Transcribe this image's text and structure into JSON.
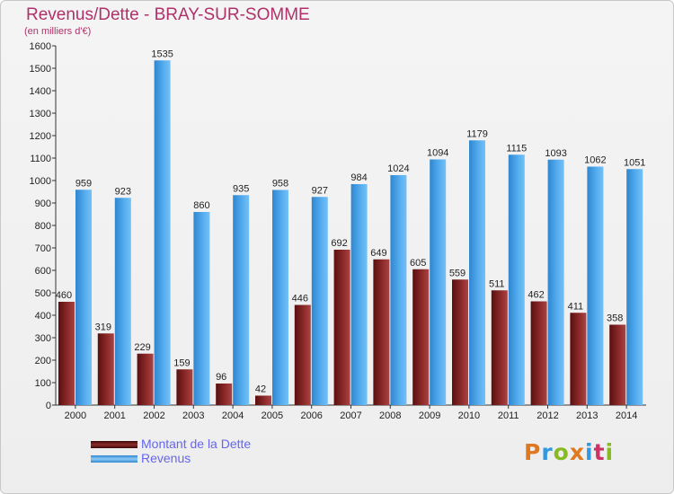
{
  "chart_data": {
    "type": "bar",
    "title": "Revenus/Dette - BRAY-SUR-SOMME",
    "subtitle": "(en milliers d'€)",
    "categories": [
      "2000",
      "2001",
      "2002",
      "2003",
      "2004",
      "2005",
      "2006",
      "2007",
      "2008",
      "2009",
      "2010",
      "2011",
      "2012",
      "2013",
      "2014"
    ],
    "series": [
      {
        "name": "Montant de la Dette",
        "color": "#7a1c1c",
        "values": [
          460,
          319,
          229,
          159,
          96,
          42,
          446,
          692,
          649,
          605,
          559,
          511,
          462,
          411,
          358
        ]
      },
      {
        "name": "Revenus",
        "color": "#4aa3e8",
        "values": [
          959,
          923,
          1535,
          860,
          935,
          958,
          927,
          984,
          1024,
          1094,
          1179,
          1115,
          1093,
          1062,
          1051
        ]
      }
    ],
    "ylim": [
      0,
      1600
    ],
    "yticks": [
      0,
      100,
      200,
      300,
      400,
      500,
      600,
      700,
      800,
      900,
      1000,
      1100,
      1200,
      1300,
      1400,
      1500,
      1600
    ],
    "xlabel": "",
    "ylabel": "",
    "grid": false,
    "legend_position": "bottom-left"
  },
  "logo": {
    "text": "Proxiti",
    "colors": [
      "#e07820",
      "#3399dd",
      "#88bb22",
      "#e07820",
      "#3399dd",
      "#cc3366",
      "#88bb22"
    ]
  }
}
